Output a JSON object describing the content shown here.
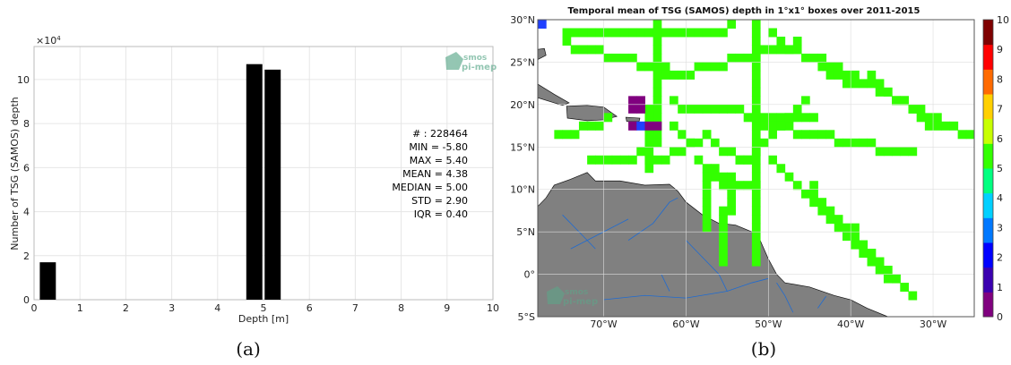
{
  "captions": {
    "a": "(a)",
    "b": "(b)"
  },
  "watermark": {
    "line1": "smos",
    "line2": "pi-mep"
  },
  "chart_data": [
    {
      "type": "bar",
      "title": "",
      "xlabel": "Depth [m]",
      "ylabel": "Number of TSG (SAMOS) depth",
      "y_multiplier": "×10",
      "y_multiplier_exp": "4",
      "xlim": [
        0,
        10
      ],
      "ylim": [
        0,
        11.5
      ],
      "x_ticks": [
        "0",
        "1",
        "2",
        "3",
        "4",
        "5",
        "6",
        "7",
        "8",
        "9",
        "10"
      ],
      "y_ticks": [
        "0",
        "2",
        "4",
        "6",
        "8",
        "10"
      ],
      "grid": true,
      "bar_width": 0.35,
      "bars": [
        {
          "x": 0.3,
          "value": 1.7
        },
        {
          "x": 4.8,
          "value": 10.7
        },
        {
          "x": 5.2,
          "value": 10.45
        }
      ],
      "stats": [
        "# : 228464",
        "MIN = -5.80",
        "MAX =  5.40",
        "MEAN = 4.38",
        "MEDIAN = 5.00",
        "STD = 2.90",
        "IQR = 0.40"
      ]
    },
    {
      "type": "heatmap",
      "title": "Temporal mean of TSG (SAMOS) depth in 1°x1° boxes over 2011-2015",
      "lon_range": [
        -78,
        -25
      ],
      "lat_range": [
        -5,
        30
      ],
      "lat_ticks": [
        "30°N",
        "25°N",
        "20°N",
        "15°N",
        "10°N",
        "5°N",
        "0°",
        "5°S"
      ],
      "lon_ticks": [
        "70°W",
        "60°W",
        "50°W",
        "40°W",
        "30°W"
      ],
      "colorbar_ticks": [
        "10",
        "9",
        "8",
        "7",
        "6",
        "5",
        "4",
        "3",
        "2",
        "1",
        "0"
      ],
      "colorbar_range": [
        0,
        10
      ],
      "colors": {
        "ocean": "#ffffff",
        "land": "#808080",
        "rivers": "#1f6bd1",
        "track": "#33ff00",
        "purple": "#80007f",
        "blue": "#2040ff"
      }
    }
  ]
}
